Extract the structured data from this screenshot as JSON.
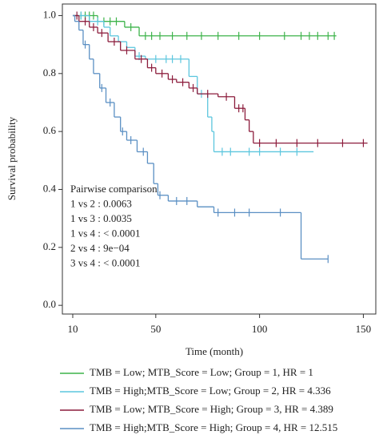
{
  "chart_data": {
    "type": "survival",
    "x_label": "Time (month)",
    "y_label": "Survival probability",
    "xlim": [
      5,
      156
    ],
    "ylim": [
      -0.03,
      1.04
    ],
    "xticks": [
      10,
      50,
      100,
      150
    ],
    "yticks": [
      {
        "value": 0,
        "label": "0.0"
      },
      {
        "value": 0.2,
        "label": "0.2"
      },
      {
        "value": 0.4,
        "label": "0.4"
      },
      {
        "value": 0.6,
        "label": "0.6"
      },
      {
        "value": 0.8,
        "label": "0.8"
      },
      {
        "value": 1,
        "label": "1.0"
      }
    ],
    "annotations": [
      "Pairwise comparison",
      "1 vs 2 : 0.0063",
      "1 vs 3 : 0.0035",
      "1 vs 4 : < 0.0001",
      "2 vs 4 : 9e−04",
      "3 vs 4 : < 0.0001"
    ],
    "series": [
      {
        "name": "TMB = Low; MTB_Score = Low; Group = 1, HR = 1",
        "color": "#3db34a",
        "x": [
          10,
          22,
          35,
          42,
          137
        ],
        "values": [
          1,
          0.98,
          0.96,
          0.93,
          0.93
        ],
        "censor_x": [
          14,
          16,
          18,
          20,
          25,
          28,
          31,
          38,
          45,
          48,
          52,
          58,
          65,
          72,
          80,
          90,
          100,
          112,
          120,
          124,
          128,
          133,
          136
        ],
        "censor_values": [
          1,
          1,
          1,
          1,
          0.98,
          0.98,
          0.98,
          0.96,
          0.93,
          0.93,
          0.93,
          0.93,
          0.93,
          0.93,
          0.93,
          0.93,
          0.93,
          0.93,
          0.93,
          0.93,
          0.93,
          0.93,
          0.93
        ]
      },
      {
        "name": "TMB = High;MTB_Score = Low; Group = 2, HR = 4.336",
        "color": "#5cc6de",
        "x": [
          10,
          18,
          25,
          28,
          32,
          36,
          40,
          45,
          66,
          70,
          75,
          77,
          78,
          126
        ],
        "values": [
          1,
          0.98,
          0.96,
          0.93,
          0.91,
          0.89,
          0.86,
          0.85,
          0.79,
          0.73,
          0.65,
          0.6,
          0.53,
          0.53
        ],
        "censor_x": [
          14,
          22,
          42,
          50,
          55,
          58,
          62,
          72,
          82,
          86,
          95,
          100,
          110,
          118
        ],
        "censor_values": [
          1,
          0.98,
          0.86,
          0.85,
          0.85,
          0.85,
          0.85,
          0.73,
          0.53,
          0.53,
          0.53,
          0.53,
          0.53,
          0.53
        ]
      },
      {
        "name": "TMB = Low; MTB_Score = High; Group = 3, HR = 4.389",
        "color": "#8c1c3c",
        "x": [
          10,
          13,
          18,
          22,
          27,
          33,
          40,
          46,
          50,
          56,
          60,
          66,
          70,
          80,
          88,
          93,
          95,
          97,
          152
        ],
        "values": [
          1,
          0.98,
          0.96,
          0.94,
          0.91,
          0.88,
          0.85,
          0.82,
          0.8,
          0.78,
          0.77,
          0.75,
          0.73,
          0.72,
          0.68,
          0.64,
          0.6,
          0.56,
          0.56
        ],
        "censor_x": [
          12,
          16,
          20,
          24,
          30,
          36,
          43,
          48,
          53,
          58,
          63,
          68,
          75,
          84,
          90,
          92,
          100,
          108,
          118,
          128,
          140,
          150
        ],
        "censor_values": [
          1,
          0.98,
          0.96,
          0.94,
          0.91,
          0.88,
          0.85,
          0.82,
          0.8,
          0.78,
          0.77,
          0.75,
          0.73,
          0.72,
          0.68,
          0.68,
          0.56,
          0.56,
          0.56,
          0.56,
          0.56,
          0.56
        ]
      },
      {
        "name": "TMB = High;MTB_Score = High; Group = 4, HR = 12.515",
        "color": "#5a8fc3",
        "x": [
          10,
          11,
          13,
          15,
          18,
          20,
          23,
          26,
          30,
          33,
          36,
          41,
          46,
          49,
          51,
          56,
          70,
          78,
          120,
          133
        ],
        "values": [
          1,
          0.98,
          0.95,
          0.9,
          0.85,
          0.8,
          0.75,
          0.7,
          0.65,
          0.6,
          0.57,
          0.53,
          0.49,
          0.42,
          0.38,
          0.36,
          0.34,
          0.32,
          0.16,
          0.16
        ],
        "censor_x": [
          16,
          24,
          28,
          34,
          38,
          44,
          52,
          60,
          65,
          80,
          88,
          95,
          110,
          133
        ],
        "censor_values": [
          0.9,
          0.75,
          0.7,
          0.6,
          0.57,
          0.53,
          0.38,
          0.36,
          0.36,
          0.32,
          0.32,
          0.32,
          0.32,
          0.16
        ]
      }
    ]
  }
}
